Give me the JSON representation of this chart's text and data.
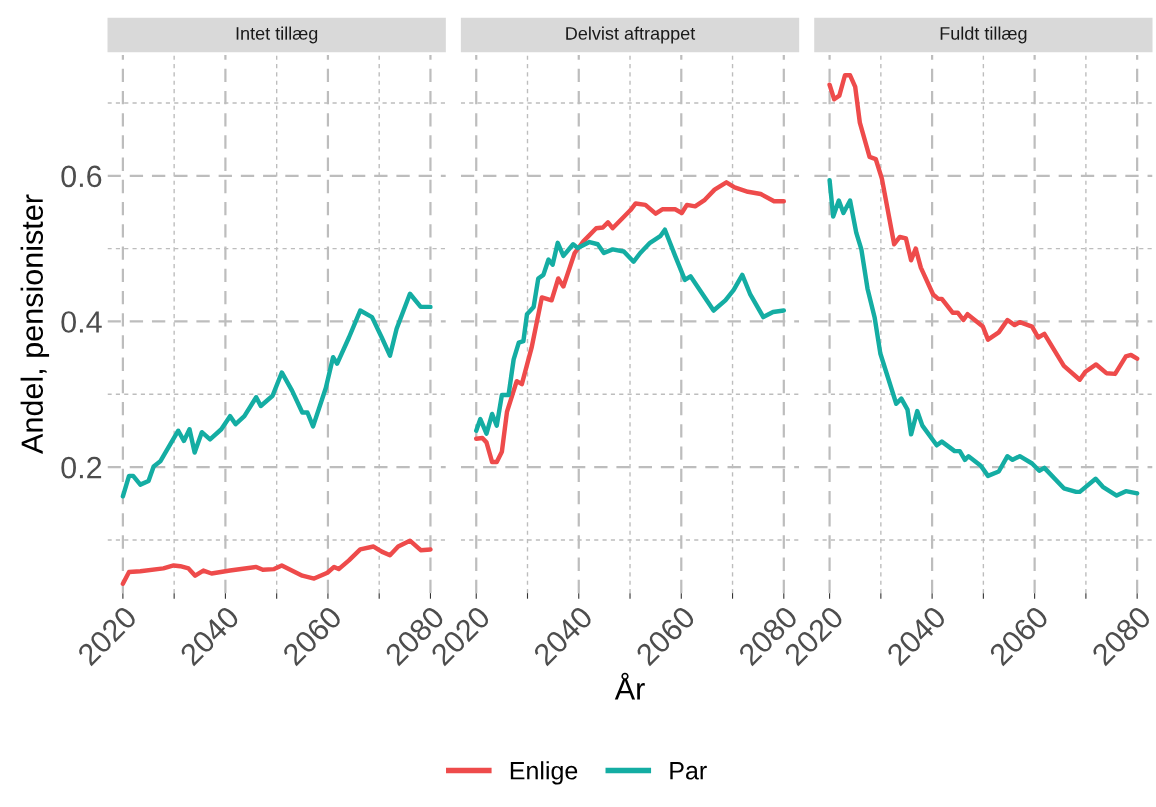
{
  "chart_data": [
    {
      "type": "line",
      "title": "Intet tillæg",
      "ylabel": "Andel, pensionister",
      "xlim": [
        2017,
        2083
      ],
      "xticks": [
        2020,
        2040,
        2060,
        2080,
        {
          "value": 2030,
          "label": null
        },
        {
          "value": 2050,
          "label": null
        },
        {
          "value": 2070,
          "label": null
        }
      ],
      "ylim": [
        0.027,
        0.766
      ],
      "yticks": [
        {
          "value": 0.2,
          "label": "0.2"
        },
        {
          "value": 0.4,
          "label": "0.4"
        },
        {
          "value": 0.6,
          "label": "0.6"
        },
        {
          "value": 0.1,
          "label": null
        },
        {
          "value": 0.3,
          "label": null
        },
        {
          "value": 0.5,
          "label": null
        },
        {
          "value": 0.7,
          "label": null
        }
      ],
      "grid": true,
      "legend": "bottom",
      "line_style": "solid",
      "series": [
        {
          "name": "Enlige",
          "color": "#ee4b4b",
          "x": [
            2020,
            2021.2,
            2023.4,
            2027.9,
            2029.9,
            2031.2,
            2032.8,
            2034.1,
            2035.7,
            2037.3,
            2040.9,
            2046,
            2047.3,
            2049.5,
            2051,
            2055,
            2057.3,
            2059.9,
            2061.2,
            2062.1,
            2064.1,
            2066.3,
            2068.9,
            2070.5,
            2072.1,
            2073.7,
            2076,
            2078.1,
            2080
          ],
          "values": [
            0.04,
            0.056,
            0.057,
            0.061,
            0.065,
            0.064,
            0.061,
            0.051,
            0.058,
            0.054,
            0.058,
            0.063,
            0.059,
            0.06,
            0.065,
            0.051,
            0.047,
            0.055,
            0.063,
            0.06,
            0.072,
            0.087,
            0.091,
            0.084,
            0.079,
            0.091,
            0.099,
            0.086,
            0.087
          ]
        },
        {
          "name": "Par",
          "color": "#14ada3",
          "x": [
            2020,
            2021.2,
            2022,
            2023.4,
            2025,
            2026,
            2027.3,
            2029.2,
            2030.8,
            2031.9,
            2033,
            2034,
            2035.4,
            2037,
            2039.2,
            2040.9,
            2042,
            2043.7,
            2046,
            2046.9,
            2049.2,
            2051,
            2053,
            2055,
            2056,
            2057.1,
            2059.6,
            2061,
            2061.8,
            2064.1,
            2066.3,
            2068.6,
            2070.5,
            2072.1,
            2073.4,
            2076,
            2078.1,
            2080
          ],
          "values": [
            0.16,
            0.188,
            0.188,
            0.176,
            0.181,
            0.201,
            0.208,
            0.231,
            0.25,
            0.236,
            0.252,
            0.22,
            0.248,
            0.238,
            0.252,
            0.27,
            0.259,
            0.27,
            0.296,
            0.284,
            0.298,
            0.33,
            0.305,
            0.275,
            0.275,
            0.256,
            0.309,
            0.351,
            0.342,
            0.378,
            0.415,
            0.406,
            0.378,
            0.353,
            0.39,
            0.438,
            0.42,
            0.42
          ]
        }
      ]
    },
    {
      "type": "line",
      "title": "Delvist aftrappet",
      "xlabel": "År",
      "xlim": [
        2017,
        2083
      ],
      "xticks": [
        2020,
        2040,
        2060,
        2080,
        {
          "value": 2030,
          "label": null
        },
        {
          "value": 2050,
          "label": null
        },
        {
          "value": 2070,
          "label": null
        }
      ],
      "ylim": [
        0.027,
        0.766
      ],
      "yticks": [
        {
          "value": 0.2,
          "label": null
        },
        {
          "value": 0.4,
          "label": null
        },
        {
          "value": 0.6,
          "label": null
        },
        {
          "value": 0.1,
          "label": null
        },
        {
          "value": 0.3,
          "label": null
        },
        {
          "value": 0.5,
          "label": null
        },
        {
          "value": 0.7,
          "label": null
        }
      ],
      "grid": true,
      "tick_labels": "x",
      "line_style": "solid",
      "series": [
        {
          "color": "#ee4b4b",
          "x": [
            2020,
            2021.2,
            2022,
            2023.1,
            2024,
            2025,
            2026,
            2027.9,
            2028.9,
            2030.8,
            2032.8,
            2034.7,
            2036,
            2037,
            2039.2,
            2040.9,
            2043.4,
            2044.7,
            2045.7,
            2046.6,
            2050.1,
            2051.1,
            2053,
            2055,
            2056.3,
            2058.8,
            2060.1,
            2061.1,
            2062.7,
            2064.6,
            2066.5,
            2068.8,
            2070.4,
            2073,
            2075.5,
            2078.1,
            2080
          ],
          "values": [
            0.239,
            0.24,
            0.234,
            0.207,
            0.207,
            0.221,
            0.276,
            0.318,
            0.314,
            0.364,
            0.433,
            0.429,
            0.459,
            0.448,
            0.494,
            0.51,
            0.528,
            0.529,
            0.536,
            0.528,
            0.553,
            0.562,
            0.56,
            0.548,
            0.554,
            0.554,
            0.549,
            0.56,
            0.558,
            0.567,
            0.581,
            0.591,
            0.584,
            0.578,
            0.575,
            0.565,
            0.565
          ]
        },
        {
          "color": "#14ada3",
          "x": [
            2020,
            2020.8,
            2022,
            2023.1,
            2024,
            2025,
            2026.3,
            2027.3,
            2028.3,
            2029.2,
            2029.9,
            2031.2,
            2032.1,
            2033.1,
            2034.1,
            2034.9,
            2035.9,
            2037,
            2038.9,
            2039.8,
            2042.1,
            2043.7,
            2044.9,
            2046.6,
            2048.8,
            2050.7,
            2052,
            2053.9,
            2055.9,
            2056.8,
            2058.8,
            2060.7,
            2061.8,
            2064.1,
            2066.3,
            2068.6,
            2070.2,
            2071.9,
            2073.4,
            2076,
            2077.9,
            2080
          ],
          "values": [
            0.25,
            0.266,
            0.246,
            0.273,
            0.257,
            0.299,
            0.299,
            0.348,
            0.371,
            0.373,
            0.41,
            0.42,
            0.459,
            0.464,
            0.485,
            0.478,
            0.508,
            0.49,
            0.506,
            0.501,
            0.509,
            0.506,
            0.494,
            0.499,
            0.496,
            0.482,
            0.494,
            0.508,
            0.517,
            0.526,
            0.49,
            0.457,
            0.462,
            0.438,
            0.415,
            0.429,
            0.443,
            0.464,
            0.438,
            0.406,
            0.413,
            0.415
          ]
        }
      ]
    },
    {
      "type": "line",
      "title": "Fuldt tillæg",
      "xlim": [
        2017,
        2083
      ],
      "xticks": [
        2020,
        2040,
        2060,
        2080,
        {
          "value": 2030,
          "label": null
        },
        {
          "value": 2050,
          "label": null
        },
        {
          "value": 2070,
          "label": null
        }
      ],
      "ylim": [
        0.027,
        0.766
      ],
      "yticks": [
        {
          "value": 0.2,
          "label": null
        },
        {
          "value": 0.4,
          "label": null
        },
        {
          "value": 0.6,
          "label": null
        },
        {
          "value": 0.1,
          "label": null
        },
        {
          "value": 0.3,
          "label": null
        },
        {
          "value": 0.5,
          "label": null
        },
        {
          "value": 0.7,
          "label": null
        }
      ],
      "grid": true,
      "tick_labels": "x",
      "line_style": "solid",
      "series": [
        {
          "color": "#ee4b4b",
          "x": [
            2020,
            2020.9,
            2021.9,
            2023,
            2024,
            2025,
            2025.9,
            2027.8,
            2029,
            2030.2,
            2032.6,
            2033.7,
            2034.9,
            2035.9,
            2036.8,
            2037.8,
            2040.2,
            2041.2,
            2041.9,
            2044,
            2045,
            2046.1,
            2046.9,
            2049.9,
            2050.9,
            2053,
            2054.7,
            2056.1,
            2057.1,
            2059.5,
            2060.7,
            2061.9,
            2065.7,
            2068.8,
            2069.9,
            2072,
            2074,
            2075.7,
            2077.8,
            2078.8,
            2080
          ],
          "values": [
            0.725,
            0.705,
            0.71,
            0.738,
            0.738,
            0.722,
            0.673,
            0.626,
            0.623,
            0.596,
            0.506,
            0.516,
            0.514,
            0.484,
            0.5,
            0.474,
            0.437,
            0.431,
            0.431,
            0.412,
            0.412,
            0.402,
            0.41,
            0.393,
            0.375,
            0.385,
            0.402,
            0.395,
            0.399,
            0.393,
            0.378,
            0.383,
            0.339,
            0.32,
            0.331,
            0.341,
            0.329,
            0.328,
            0.352,
            0.354,
            0.349
          ]
        },
        {
          "color": "#14ada3",
          "x": [
            2020,
            2020.7,
            2021.8,
            2022.7,
            2024,
            2025.2,
            2026.2,
            2027.4,
            2028.8,
            2029.9,
            2033,
            2034,
            2035.2,
            2035.9,
            2037.1,
            2038.1,
            2040.9,
            2041.9,
            2044.4,
            2045.4,
            2046.4,
            2047.1,
            2049.5,
            2050.9,
            2053,
            2054.7,
            2055.7,
            2057.1,
            2059.5,
            2060.9,
            2061.9,
            2065.7,
            2068.1,
            2068.8,
            2071.9,
            2073.3,
            2076,
            2077.8,
            2080
          ],
          "values": [
            0.594,
            0.544,
            0.566,
            0.549,
            0.566,
            0.522,
            0.499,
            0.445,
            0.405,
            0.356,
            0.287,
            0.294,
            0.279,
            0.245,
            0.277,
            0.257,
            0.23,
            0.235,
            0.222,
            0.222,
            0.21,
            0.215,
            0.202,
            0.188,
            0.194,
            0.215,
            0.21,
            0.215,
            0.205,
            0.195,
            0.199,
            0.171,
            0.166,
            0.166,
            0.184,
            0.173,
            0.161,
            0.167,
            0.164
          ]
        }
      ]
    }
  ]
}
